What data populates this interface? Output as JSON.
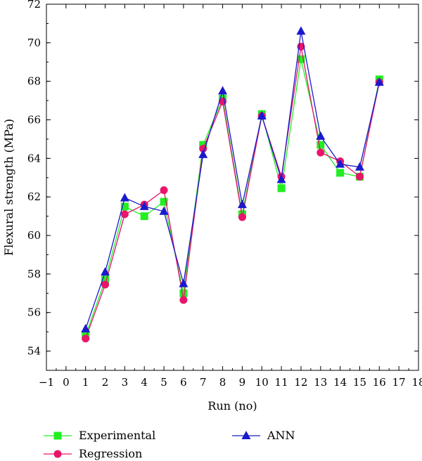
{
  "chart_data": {
    "type": "line",
    "xlabel": "Run (no)",
    "ylabel": "Flexural strength (MPa)",
    "xlim": [
      -1,
      18
    ],
    "ylim": [
      53,
      72
    ],
    "x_ticks": [
      "−1",
      "0",
      "1",
      "2",
      "3",
      "4",
      "5",
      "6",
      "7",
      "8",
      "9",
      "10",
      "11",
      "12",
      "13",
      "14",
      "15",
      "16",
      "17",
      "18"
    ],
    "y_ticks": [
      "54",
      "56",
      "58",
      "60",
      "62",
      "64",
      "66",
      "68",
      "70",
      "72"
    ],
    "grid": false,
    "legend_position": "bottom",
    "x": [
      1,
      2,
      3,
      4,
      5,
      6,
      7,
      8,
      9,
      10,
      11,
      12,
      13,
      14,
      15,
      16
    ],
    "series": [
      {
        "name": "Experimental",
        "color": "#22ee22",
        "marker": "square",
        "values": [
          54.8,
          57.7,
          61.5,
          61.0,
          61.75,
          57.0,
          64.7,
          67.1,
          61.1,
          66.3,
          62.45,
          69.15,
          64.7,
          63.25,
          63.05,
          68.1
        ]
      },
      {
        "name": "Regression",
        "color": "#e8156b",
        "marker": "circle",
        "values": [
          54.65,
          57.45,
          61.1,
          61.6,
          62.35,
          56.65,
          64.5,
          66.95,
          60.95,
          66.2,
          63.05,
          69.8,
          64.3,
          63.85,
          63.05,
          67.95
        ]
      },
      {
        "name": "ANN",
        "color": "#1a1acc",
        "marker": "triangle",
        "values": [
          55.15,
          58.1,
          61.95,
          61.5,
          61.25,
          57.5,
          64.2,
          67.5,
          61.6,
          66.2,
          62.9,
          70.6,
          65.15,
          63.7,
          63.55,
          67.95
        ]
      }
    ]
  }
}
